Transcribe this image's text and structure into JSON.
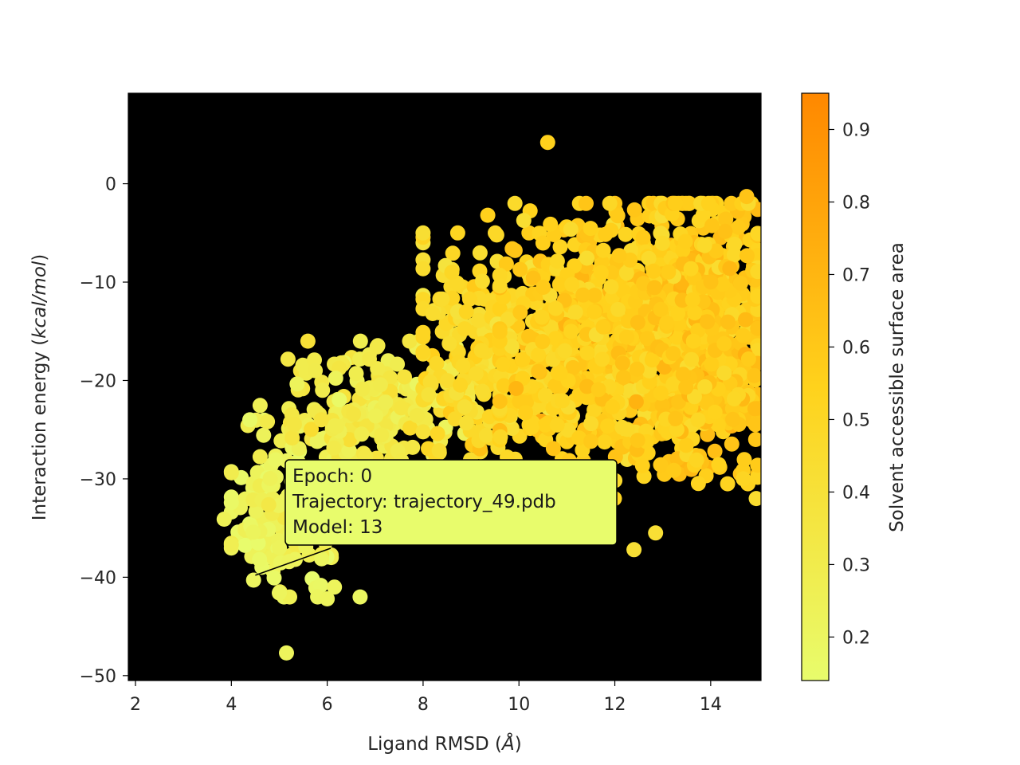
{
  "chart_data": {
    "type": "scatter",
    "xlabel": "Ligand RMSD",
    "xlabel_unit": "Å",
    "ylabel": "Interaction energy",
    "ylabel_unit": "kcal/mol",
    "xlim": [
      1.85,
      15.05
    ],
    "ylim": [
      -50.5,
      9.2
    ],
    "x_ticks": [
      2,
      4,
      6,
      8,
      10,
      12,
      14
    ],
    "y_ticks": [
      0,
      -10,
      -20,
      -30,
      -40,
      -50
    ],
    "plot_background": "#000000",
    "grid": false,
    "colorbar": {
      "label": "Solvent accessible surface area",
      "min": 0.14,
      "max": 0.95,
      "ticks": [
        0.2,
        0.3,
        0.4,
        0.5,
        0.6,
        0.7,
        0.8,
        0.9
      ],
      "color_low": "#e8fc6c",
      "color_mid": "#ffd21c",
      "color_high": "#ff8800"
    },
    "annotation": {
      "lines": [
        "Epoch: 0",
        "Trajectory: trajectory_49.pdb",
        "Model: 13"
      ],
      "point": [
        4.5,
        -39.8
      ],
      "box_color": "#e8fc6c"
    },
    "notable_points": [
      {
        "x": 10.6,
        "y": 4.2,
        "c": 0.55
      },
      {
        "x": 5.15,
        "y": -47.7,
        "c": 0.22
      },
      {
        "x": 3.85,
        "y": -34.1,
        "c": 0.25
      },
      {
        "x": 12.4,
        "y": -37.2,
        "c": 0.42
      },
      {
        "x": 12.85,
        "y": -35.5,
        "c": 0.42
      },
      {
        "x": 14.75,
        "y": -1.3,
        "c": 0.62
      },
      {
        "x": 5.75,
        "y": -19.0,
        "c": 0.3
      },
      {
        "x": 8.6,
        "y": -9.0,
        "c": 0.5
      },
      {
        "x": 9.35,
        "y": -3.2,
        "c": 0.55
      },
      {
        "x": 14.95,
        "y": -32.0,
        "c": 0.45
      },
      {
        "x": 6.0,
        "y": -42.2,
        "c": 0.22
      },
      {
        "x": 6.15,
        "y": -41.0,
        "c": 0.22
      },
      {
        "x": 5.0,
        "y": -41.6,
        "c": 0.22
      },
      {
        "x": 8.2,
        "y": -13.2,
        "c": 0.45
      }
    ],
    "clusters": [
      {
        "cx": 5.3,
        "cy": -33.5,
        "sx": 0.75,
        "sy": 4.2,
        "n": 170,
        "c": 0.23,
        "cspread": 0.04,
        "xmin": 4.0,
        "xmax": 6.9,
        "ymin": -42.0,
        "ymax": -24.0
      },
      {
        "cx": 6.9,
        "cy": -23.0,
        "sx": 1.05,
        "sy": 3.4,
        "n": 210,
        "c": 0.32,
        "cspread": 0.05,
        "xmin": 4.6,
        "xmax": 9.0,
        "ymin": -31.0,
        "ymax": -16.0
      },
      {
        "cx": 9.3,
        "cy": -18.0,
        "sx": 0.85,
        "sy": 5.8,
        "n": 260,
        "c": 0.47,
        "cspread": 0.05,
        "xmin": 8.0,
        "xmax": 11.0,
        "ymin": -31.5,
        "ymax": -5.0
      },
      {
        "cx": 11.8,
        "cy": -16.0,
        "sx": 1.15,
        "sy": 6.4,
        "n": 700,
        "c": 0.55,
        "cspread": 0.06,
        "xmin": 9.6,
        "xmax": 14.9,
        "ymin": -32.0,
        "ymax": -2.0
      },
      {
        "cx": 13.8,
        "cy": -15.0,
        "sx": 0.75,
        "sy": 6.5,
        "n": 650,
        "c": 0.58,
        "cspread": 0.06,
        "xmin": 11.5,
        "xmax": 14.98,
        "ymin": -30.5,
        "ymax": -2.0
      }
    ]
  }
}
